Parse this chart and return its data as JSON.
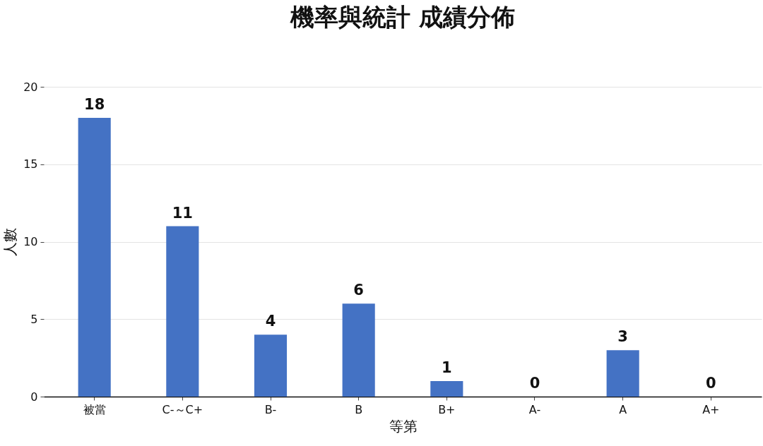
{
  "chart_data": {
    "type": "bar",
    "title": "機率與統計 成績分佈",
    "xlabel": "等第",
    "ylabel": "人數",
    "categories": [
      "被當",
      "C-～C+",
      "B-",
      "B",
      "B+",
      "A-",
      "A",
      "A+"
    ],
    "values": [
      18,
      11,
      4,
      6,
      1,
      0,
      3,
      0
    ],
    "color": "#4472c4",
    "ylim": [
      0,
      20
    ],
    "yticks": [
      0,
      5,
      10,
      15,
      20
    ],
    "grid": "y",
    "data_labels": true
  }
}
